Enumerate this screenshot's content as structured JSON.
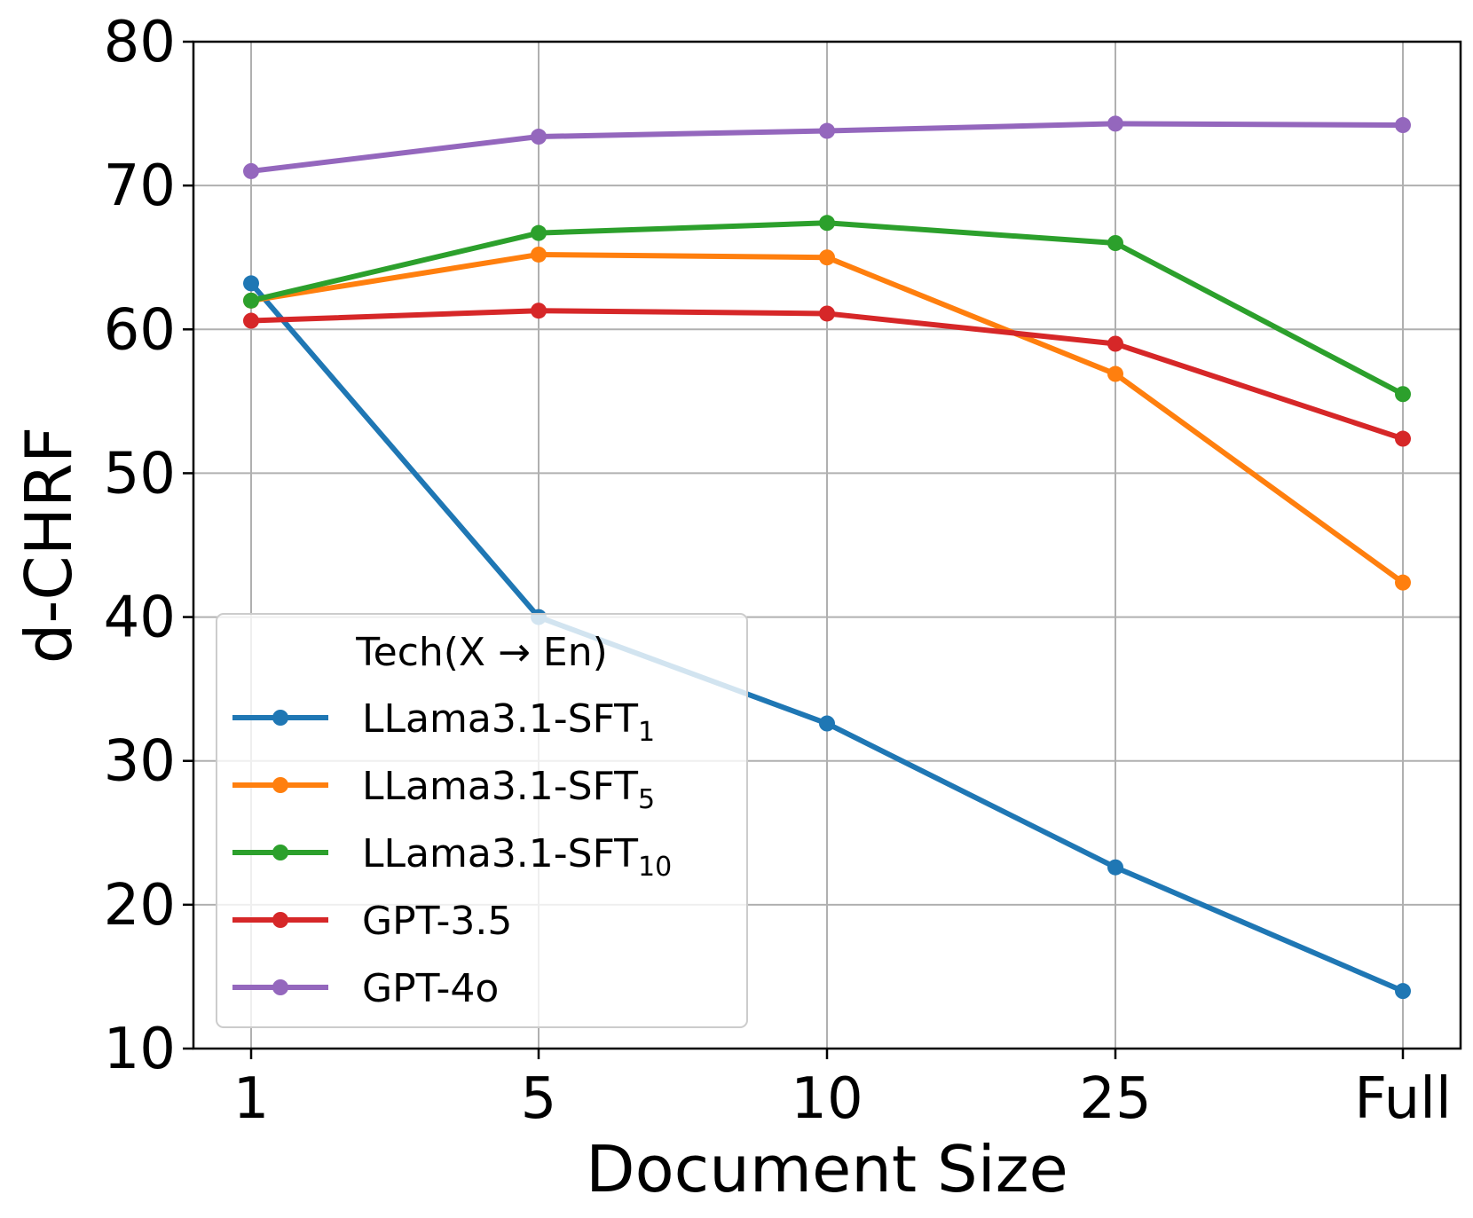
{
  "chart_data": {
    "type": "line",
    "title": "",
    "xlabel": "Document Size",
    "ylabel": "d-CHRF",
    "categories": [
      "1",
      "5",
      "10",
      "25",
      "Full"
    ],
    "ylim": [
      10,
      80
    ],
    "yticks": [
      10,
      20,
      30,
      40,
      50,
      60,
      70,
      80
    ],
    "grid": true,
    "legend": {
      "title": "Tech(X → En)",
      "placement": "lower-left"
    },
    "series": [
      {
        "name": "LLama3.1-SFT",
        "subscript": "1",
        "color": "#1f77b4",
        "values": [
          63.2,
          40.0,
          32.6,
          22.6,
          14.0
        ]
      },
      {
        "name": "LLama3.1-SFT",
        "subscript": "5",
        "color": "#ff7f0e",
        "values": [
          62.0,
          65.2,
          65.0,
          56.9,
          42.4
        ]
      },
      {
        "name": "LLama3.1-SFT",
        "subscript": "10",
        "color": "#2ca02c",
        "values": [
          62.0,
          66.7,
          67.4,
          66.0,
          55.5
        ]
      },
      {
        "name": "GPT-3.5",
        "subscript": "",
        "color": "#d62728",
        "values": [
          60.6,
          61.3,
          61.1,
          59.0,
          52.4
        ]
      },
      {
        "name": "GPT-4o",
        "subscript": "",
        "color": "#9467bd",
        "values": [
          71.0,
          73.4,
          73.8,
          74.3,
          74.2
        ]
      }
    ]
  }
}
